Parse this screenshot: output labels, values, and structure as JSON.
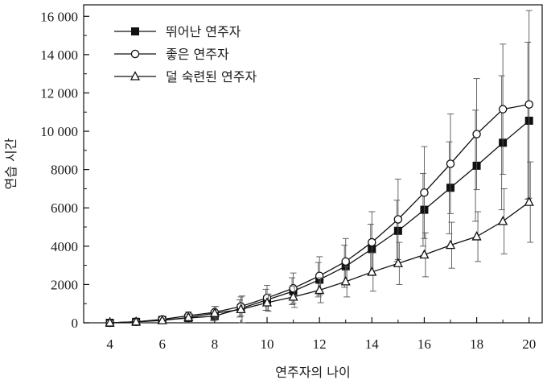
{
  "chart_data": {
    "type": "line",
    "xlabel": "연주자의 나이",
    "ylabel": "연습 시간",
    "xlim": [
      3,
      20.5
    ],
    "ylim": [
      0,
      16600
    ],
    "x_ticks": [
      4,
      6,
      8,
      10,
      12,
      14,
      16,
      18,
      20
    ],
    "y_ticks": [
      0,
      2000,
      4000,
      6000,
      8000,
      10000,
      12000,
      14000,
      16000
    ],
    "x_tick_labels": [
      "4",
      "6",
      "8",
      "10",
      "12",
      "14",
      "16",
      "18",
      "20"
    ],
    "y_tick_labels": [
      "0",
      "2000",
      "4000",
      "6000",
      "8000",
      "10 000",
      "12 000",
      "14 000",
      "16 000"
    ],
    "legend_position": "top-left",
    "x": [
      4,
      5,
      6,
      7,
      8,
      9,
      10,
      11,
      12,
      13,
      14,
      15,
      16,
      17,
      18,
      19,
      20
    ],
    "series": [
      {
        "name": "뛰어난 연주자",
        "marker": "filled-square",
        "color": "#111111",
        "values": [
          0,
          50,
          150,
          250,
          350,
          750,
          1200,
          1650,
          2250,
          2950,
          3850,
          4800,
          5900,
          7050,
          8200,
          9400,
          10550
        ],
        "errors": [
          30,
          60,
          100,
          180,
          250,
          450,
          550,
          700,
          900,
          1100,
          1300,
          1600,
          1900,
          2400,
          2900,
          3500,
          4100
        ]
      },
      {
        "name": "좋은 연주자",
        "marker": "open-circle",
        "color": "#111111",
        "values": [
          0,
          50,
          180,
          370,
          550,
          850,
          1300,
          1800,
          2450,
          3200,
          4200,
          5400,
          6800,
          8300,
          9850,
          11150,
          11400
        ],
        "errors": [
          30,
          60,
          100,
          200,
          300,
          500,
          650,
          800,
          1000,
          1200,
          1600,
          2100,
          2400,
          2600,
          2900,
          3400,
          4900
        ]
      },
      {
        "name": "덜 숙련된 연주자",
        "marker": "open-triangle",
        "color": "#111111",
        "values": [
          0,
          50,
          120,
          280,
          500,
          700,
          1050,
          1350,
          1700,
          2150,
          2650,
          3100,
          3550,
          4050,
          4500,
          5300,
          6300
        ],
        "errors": [
          30,
          60,
          100,
          180,
          350,
          700,
          450,
          550,
          650,
          800,
          1000,
          1100,
          1150,
          1200,
          1300,
          1700,
          2100
        ]
      }
    ]
  }
}
